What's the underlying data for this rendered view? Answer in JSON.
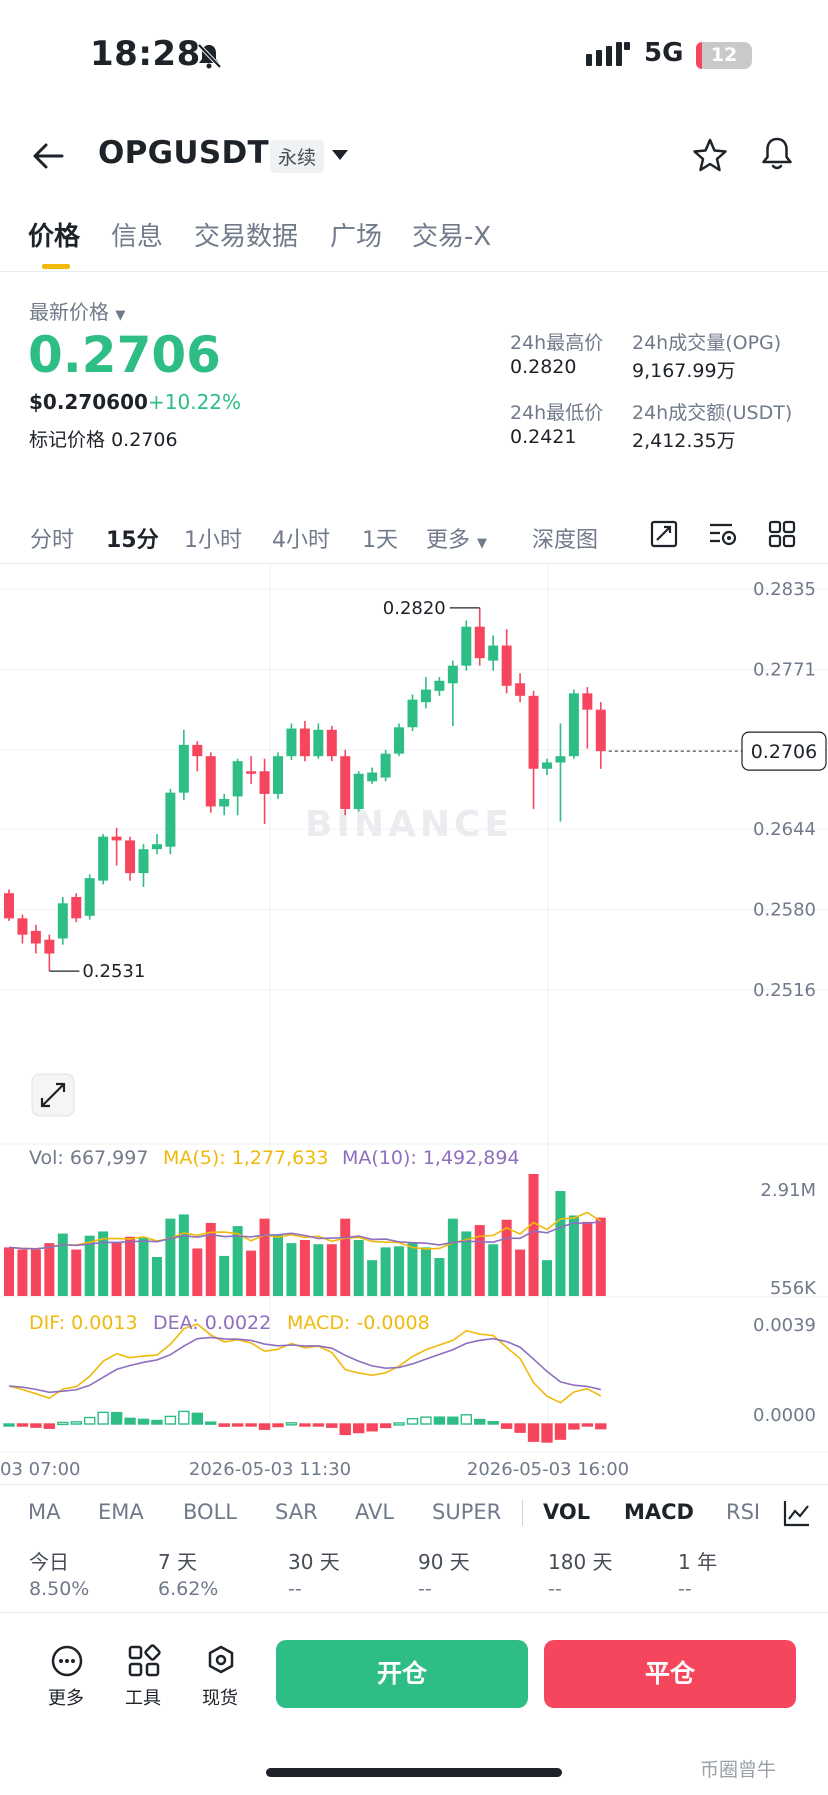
{
  "status_bar": {
    "time": "18:28",
    "network": "5G",
    "battery": "12"
  },
  "header": {
    "symbol": "OPGUSDT",
    "contract_tag": "永续"
  },
  "tabs": [
    {
      "label": "价格"
    },
    {
      "label": "信息"
    },
    {
      "label": "交易数据"
    },
    {
      "label": "广场"
    },
    {
      "label": "交易-X"
    }
  ],
  "price_panel": {
    "latest_label": "最新价格",
    "price": "0.2706",
    "usd_price": "$0.270600",
    "change_pct": "+10.22%",
    "mark_label": "标记价格",
    "mark_price": "0.2706",
    "stats": {
      "high_label": "24h最高价",
      "high": "0.2820",
      "volume_label": "24h成交量(OPG)",
      "volume": "9,167.99万",
      "low_label": "24h最低价",
      "low": "0.2421",
      "turnover_label": "24h成交额(USDT)",
      "turnover": "2,412.35万"
    }
  },
  "intervals": [
    {
      "label": "分时"
    },
    {
      "label": "15分"
    },
    {
      "label": "1小时"
    },
    {
      "label": "4小时"
    },
    {
      "label": "1天"
    },
    {
      "label": "更多"
    },
    {
      "label": "深度图"
    }
  ],
  "chart_data": {
    "type": "candlestick",
    "y_ticks": [
      "0.2835",
      "0.2771",
      "0.2707",
      "0.2644",
      "0.2580",
      "0.2516"
    ],
    "ylim": [
      0.2516,
      0.2835
    ],
    "high_marker": "0.2820",
    "low_marker": "0.2531",
    "last_price_tag": "0.2706",
    "watermark": "BINANCE",
    "candles": [
      {
        "o": 0.2593,
        "c": 0.2573,
        "h": 0.2596,
        "l": 0.2571
      },
      {
        "o": 0.2573,
        "c": 0.256,
        "h": 0.2576,
        "l": 0.2553
      },
      {
        "o": 0.2563,
        "c": 0.2553,
        "h": 0.2568,
        "l": 0.2545
      },
      {
        "o": 0.2556,
        "c": 0.2545,
        "h": 0.256,
        "l": 0.2531
      },
      {
        "o": 0.2557,
        "c": 0.2585,
        "h": 0.259,
        "l": 0.2552
      },
      {
        "o": 0.259,
        "c": 0.2573,
        "h": 0.2593,
        "l": 0.257
      },
      {
        "o": 0.2575,
        "c": 0.2605,
        "h": 0.2608,
        "l": 0.2572
      },
      {
        "o": 0.2603,
        "c": 0.2638,
        "h": 0.264,
        "l": 0.26
      },
      {
        "o": 0.2638,
        "c": 0.2635,
        "h": 0.2645,
        "l": 0.2615
      },
      {
        "o": 0.2635,
        "c": 0.2609,
        "h": 0.2638,
        "l": 0.2603
      },
      {
        "o": 0.2609,
        "c": 0.2628,
        "h": 0.2632,
        "l": 0.2598
      },
      {
        "o": 0.2628,
        "c": 0.2632,
        "h": 0.264,
        "l": 0.2624
      },
      {
        "o": 0.263,
        "c": 0.2673,
        "h": 0.2676,
        "l": 0.2624
      },
      {
        "o": 0.2673,
        "c": 0.2711,
        "h": 0.2723,
        "l": 0.2667
      },
      {
        "o": 0.2711,
        "c": 0.2702,
        "h": 0.2714,
        "l": 0.269
      },
      {
        "o": 0.2702,
        "c": 0.2662,
        "h": 0.2705,
        "l": 0.2657
      },
      {
        "o": 0.2662,
        "c": 0.2668,
        "h": 0.2672,
        "l": 0.2655
      },
      {
        "o": 0.267,
        "c": 0.2698,
        "h": 0.27,
        "l": 0.2655
      },
      {
        "o": 0.269,
        "c": 0.2688,
        "h": 0.2702,
        "l": 0.268
      },
      {
        "o": 0.269,
        "c": 0.2672,
        "h": 0.27,
        "l": 0.2648
      },
      {
        "o": 0.2672,
        "c": 0.2702,
        "h": 0.2705,
        "l": 0.2668
      },
      {
        "o": 0.2702,
        "c": 0.2724,
        "h": 0.2728,
        "l": 0.2699
      },
      {
        "o": 0.2724,
        "c": 0.2702,
        "h": 0.273,
        "l": 0.2698
      },
      {
        "o": 0.2702,
        "c": 0.2723,
        "h": 0.2728,
        "l": 0.27
      },
      {
        "o": 0.2723,
        "c": 0.2702,
        "h": 0.2726,
        "l": 0.2698
      },
      {
        "o": 0.2702,
        "c": 0.266,
        "h": 0.2707,
        "l": 0.2655
      },
      {
        "o": 0.266,
        "c": 0.2688,
        "h": 0.269,
        "l": 0.2658
      },
      {
        "o": 0.2682,
        "c": 0.2689,
        "h": 0.2693,
        "l": 0.268
      },
      {
        "o": 0.2685,
        "c": 0.2704,
        "h": 0.2707,
        "l": 0.2682
      },
      {
        "o": 0.2704,
        "c": 0.2725,
        "h": 0.2728,
        "l": 0.2702
      },
      {
        "o": 0.2725,
        "c": 0.2747,
        "h": 0.2751,
        "l": 0.2722
      },
      {
        "o": 0.2745,
        "c": 0.2755,
        "h": 0.2765,
        "l": 0.274
      },
      {
        "o": 0.2754,
        "c": 0.2762,
        "h": 0.2765,
        "l": 0.275
      },
      {
        "o": 0.276,
        "c": 0.2774,
        "h": 0.2778,
        "l": 0.2726
      },
      {
        "o": 0.2774,
        "c": 0.2805,
        "h": 0.281,
        "l": 0.277
      },
      {
        "o": 0.2805,
        "c": 0.278,
        "h": 0.282,
        "l": 0.2774
      },
      {
        "o": 0.2778,
        "c": 0.279,
        "h": 0.2798,
        "l": 0.277
      },
      {
        "o": 0.279,
        "c": 0.2758,
        "h": 0.2803,
        "l": 0.2752
      },
      {
        "o": 0.276,
        "c": 0.275,
        "h": 0.2768,
        "l": 0.2745
      },
      {
        "o": 0.275,
        "c": 0.2692,
        "h": 0.2754,
        "l": 0.266
      },
      {
        "o": 0.2692,
        "c": 0.2697,
        "h": 0.27,
        "l": 0.2687
      },
      {
        "o": 0.2697,
        "c": 0.2702,
        "h": 0.2728,
        "l": 0.265
      },
      {
        "o": 0.2702,
        "c": 0.2752,
        "h": 0.2755,
        "l": 0.27
      },
      {
        "o": 0.2752,
        "c": 0.2739,
        "h": 0.2757,
        "l": 0.2708
      },
      {
        "o": 0.2739,
        "c": 0.2706,
        "h": 0.2745,
        "l": 0.2692
      }
    ]
  },
  "volume_panel": {
    "vol_label": "Vol: 667,997",
    "ma5_label": "MA(5): 1,277,633",
    "ma10_label": "MA(10): 1,492,894",
    "axis_top": "2.91M",
    "axis_bottom": "556K",
    "ma5_color": "#f0b90b",
    "ma10_color": "#8e6fbf"
  },
  "macd_panel": {
    "dif_label": "DIF: 0.0013",
    "dea_label": "DEA: 0.0022",
    "macd_label": "MACD: -0.0008",
    "axis_top": "0.0039",
    "axis_zero": "0.0000"
  },
  "time_axis": [
    "03 07:00",
    "2026-05-03 11:30",
    "2026-05-03 16:00"
  ],
  "indicators": [
    {
      "label": "MA"
    },
    {
      "label": "EMA"
    },
    {
      "label": "BOLL"
    },
    {
      "label": "SAR"
    },
    {
      "label": "AVL"
    },
    {
      "label": "SUPER"
    },
    {
      "label": "VOL"
    },
    {
      "label": "MACD"
    },
    {
      "label": "RSI"
    }
  ],
  "performance": [
    {
      "label": "今日",
      "value": "8.50%"
    },
    {
      "label": "7 天",
      "value": "6.62%"
    },
    {
      "label": "30 天",
      "value": "--"
    },
    {
      "label": "90 天",
      "value": "--"
    },
    {
      "label": "180 天",
      "value": "--"
    },
    {
      "label": "1 年",
      "value": "--"
    }
  ],
  "bottom_bar": {
    "more": "更多",
    "tools": "工具",
    "spot": "现货",
    "open": "开仓",
    "close": "平仓",
    "green": "#2ebd85",
    "red": "#f6465d"
  },
  "watermark_text": "币圈曾牛"
}
